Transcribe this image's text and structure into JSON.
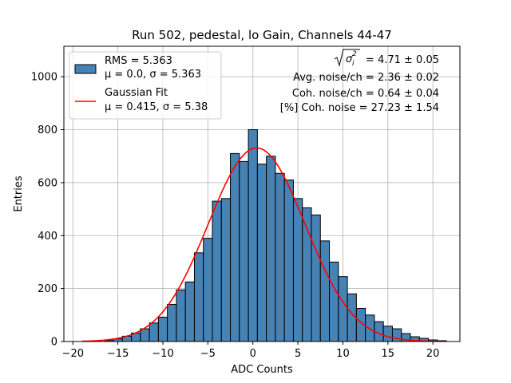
{
  "chart_data": {
    "type": "bar",
    "title": "Run 502, pedestal, lo Gain, Channels 44-47",
    "xlabel": "ADC Counts",
    "ylabel": "Entries",
    "xlim": [
      -21,
      23
    ],
    "ylim": [
      0,
      1115
    ],
    "xticks": [
      -20,
      -15,
      -10,
      -5,
      0,
      5,
      10,
      15,
      20
    ],
    "yticks": [
      0,
      200,
      400,
      600,
      800,
      1000
    ],
    "grid": true,
    "bin_start": -16.5,
    "bin_width": 1,
    "counts": [
      4,
      10,
      20,
      32,
      48,
      70,
      92,
      140,
      195,
      225,
      335,
      390,
      530,
      540,
      710,
      680,
      800,
      670,
      700,
      635,
      610,
      540,
      505,
      478,
      380,
      300,
      245,
      180,
      125,
      100,
      75,
      58,
      48,
      30,
      18,
      12,
      6,
      3
    ],
    "series": [
      {
        "name": "RMS = 5.363",
        "name_line2": "μ = 0.0, σ = 5.363",
        "type": "histogram",
        "color": "#4682b4",
        "edgecolor": "#000000"
      },
      {
        "name": "Gaussian Fit",
        "name_line2": "μ = 0.415, σ = 5.38",
        "type": "line",
        "color": "#ff0000",
        "mu": 0.415,
        "sigma": 5.38,
        "amplitude": 731,
        "x_range": [
          -19,
          21
        ]
      }
    ],
    "legend_position": "upper-left",
    "annotations": {
      "sigma_total_value": "= 4.71 ± 0.05",
      "avg_noise": "Avg. noise/ch = 2.36 ± 0.02",
      "coh_noise": "Coh. noise/ch = 0.64 ± 0.04",
      "pct_coh_noise": "[%] Coh. noise = 27.23 ± 1.54"
    }
  }
}
